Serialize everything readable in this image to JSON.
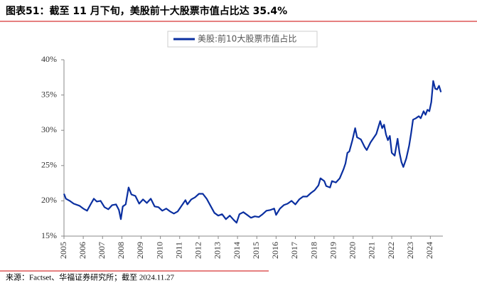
{
  "title": "图表51：截至 11 月下旬，美股前十大股票市值占比达 35.4%",
  "source": "来源：Factset、华福证券研究所；截至 2024.11.27",
  "chart_data": {
    "type": "line",
    "x": [
      2005.0,
      2005.1,
      2005.3,
      2005.5,
      2005.8,
      2006.0,
      2006.2,
      2006.4,
      2006.55,
      2006.7,
      2006.9,
      2007.1,
      2007.3,
      2007.5,
      2007.7,
      2007.85,
      2007.95,
      2008.05,
      2008.2,
      2008.35,
      2008.5,
      2008.7,
      2008.9,
      2009.1,
      2009.3,
      2009.5,
      2009.7,
      2009.9,
      2010.1,
      2010.3,
      2010.5,
      2010.7,
      2010.9,
      2011.1,
      2011.3,
      2011.4,
      2011.6,
      2011.8,
      2012.0,
      2012.2,
      2012.4,
      2012.6,
      2012.8,
      2013.0,
      2013.2,
      2013.4,
      2013.6,
      2013.8,
      2013.95,
      2014.1,
      2014.3,
      2014.5,
      2014.7,
      2014.9,
      2015.1,
      2015.3,
      2015.5,
      2015.7,
      2015.9,
      2016.0,
      2016.2,
      2016.4,
      2016.6,
      2016.8,
      2017.0,
      2017.2,
      2017.4,
      2017.6,
      2017.8,
      2018.0,
      2018.2,
      2018.3,
      2018.5,
      2018.6,
      2018.8,
      2018.9,
      2019.1,
      2019.3,
      2019.5,
      2019.6,
      2019.7,
      2019.8,
      2019.95,
      2020.1,
      2020.2,
      2020.4,
      2020.6,
      2020.7,
      2020.9,
      2021.05,
      2021.2,
      2021.4,
      2021.5,
      2021.6,
      2021.7,
      2021.8,
      2021.9,
      2022.0,
      2022.15,
      2022.3,
      2022.4,
      2022.5,
      2022.6,
      2022.75,
      2022.9,
      2023.0,
      2023.1,
      2023.25,
      2023.4,
      2023.5,
      2023.65,
      2023.75,
      2023.85,
      2023.95,
      2024.05,
      2024.15,
      2024.25,
      2024.35,
      2024.45,
      2024.55
    ],
    "series": [
      {
        "name": "美股:前10大股票市值占比",
        "color": "#0a2fa0",
        "values": [
          21.0,
          20.3,
          20.0,
          19.6,
          19.3,
          18.9,
          18.6,
          19.6,
          20.3,
          19.9,
          20.0,
          19.1,
          18.8,
          19.4,
          19.5,
          18.7,
          17.4,
          19.2,
          19.5,
          21.9,
          20.9,
          20.7,
          19.6,
          20.2,
          19.7,
          20.3,
          19.2,
          19.1,
          18.6,
          18.9,
          18.5,
          18.2,
          18.5,
          19.3,
          20.1,
          19.5,
          20.2,
          20.5,
          21.0,
          21.0,
          20.3,
          19.3,
          18.3,
          17.9,
          18.1,
          17.4,
          17.9,
          17.3,
          16.9,
          18.1,
          18.4,
          18.0,
          17.6,
          17.8,
          17.7,
          18.1,
          18.6,
          18.7,
          18.9,
          18.0,
          18.9,
          19.4,
          19.6,
          20.0,
          19.5,
          20.2,
          20.6,
          20.6,
          21.1,
          21.5,
          22.2,
          23.2,
          22.8,
          22.1,
          21.9,
          22.8,
          22.6,
          23.2,
          24.5,
          25.3,
          26.8,
          27.0,
          28.5,
          30.3,
          29.0,
          28.7,
          27.6,
          27.2,
          28.3,
          28.9,
          29.5,
          31.3,
          30.3,
          30.8,
          29.4,
          28.6,
          29.2,
          26.8,
          26.4,
          28.8,
          26.8,
          25.5,
          24.8,
          26.0,
          27.8,
          29.5,
          31.5,
          31.7,
          32.0,
          31.7,
          32.7,
          32.2,
          32.9,
          32.7,
          34.0,
          37.0,
          35.9,
          35.8,
          36.3,
          35.4
        ]
      }
    ],
    "xlim": [
      2005,
      2024.65
    ],
    "xticks": [
      2005,
      2006,
      2007,
      2008,
      2009,
      2010,
      2011,
      2012,
      2013,
      2014,
      2015,
      2016,
      2017,
      2018,
      2019,
      2020,
      2021,
      2022,
      2023,
      2024
    ],
    "ylim": [
      15,
      40
    ],
    "yticks": [
      {
        "value": 15,
        "label": "15%"
      },
      {
        "value": 20,
        "label": "20%"
      },
      {
        "value": 25,
        "label": "25%"
      },
      {
        "value": 30,
        "label": "30%"
      },
      {
        "value": 35,
        "label": "35%"
      },
      {
        "value": 40,
        "label": "40%"
      }
    ]
  }
}
